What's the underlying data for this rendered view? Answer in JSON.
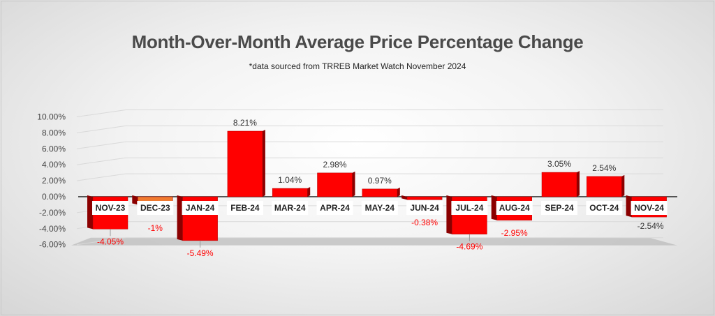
{
  "chart_data": {
    "type": "bar",
    "title": "Month-Over-Month Average Price Percentage Change",
    "subtitle": "*data sourced from TRREB Market Watch November 2024",
    "xlabel": "",
    "ylabel": "",
    "ylim": [
      -6,
      10
    ],
    "yticks": [
      "10.00%",
      "8.00%",
      "6.00%",
      "4.00%",
      "2.00%",
      "0.00%",
      "-2.00%",
      "-4.00%",
      "-6.00%"
    ],
    "categories": [
      "NOV-23",
      "DEC-23",
      "JAN-24",
      "FEB-24",
      "MAR-24",
      "APR-24",
      "MAY-24",
      "JUN-24",
      "JUL-24",
      "AUG-24",
      "SEP-24",
      "OCT-24",
      "NOV-24"
    ],
    "values": [
      -4.05,
      -1,
      -5.49,
      8.21,
      1.04,
      2.98,
      0.97,
      -0.38,
      -4.69,
      -2.95,
      3.05,
      2.54,
      -2.54
    ],
    "data_labels": [
      "-4.05%",
      "-1%",
      "-5.49%",
      "8.21%",
      "1.04%",
      "2.98%",
      "0.97%",
      "-0.38%",
      "-4.69%",
      "-2.95%",
      "3.05%",
      "2.54%",
      "-2.54%"
    ],
    "colors": {
      "bar": "#ff0000",
      "bar_side": "#8b0000",
      "highlight_bar": "#f07a30",
      "negative_label": "#ff0000",
      "positive_label": "#333333",
      "floor": "#bcbcbc"
    }
  }
}
